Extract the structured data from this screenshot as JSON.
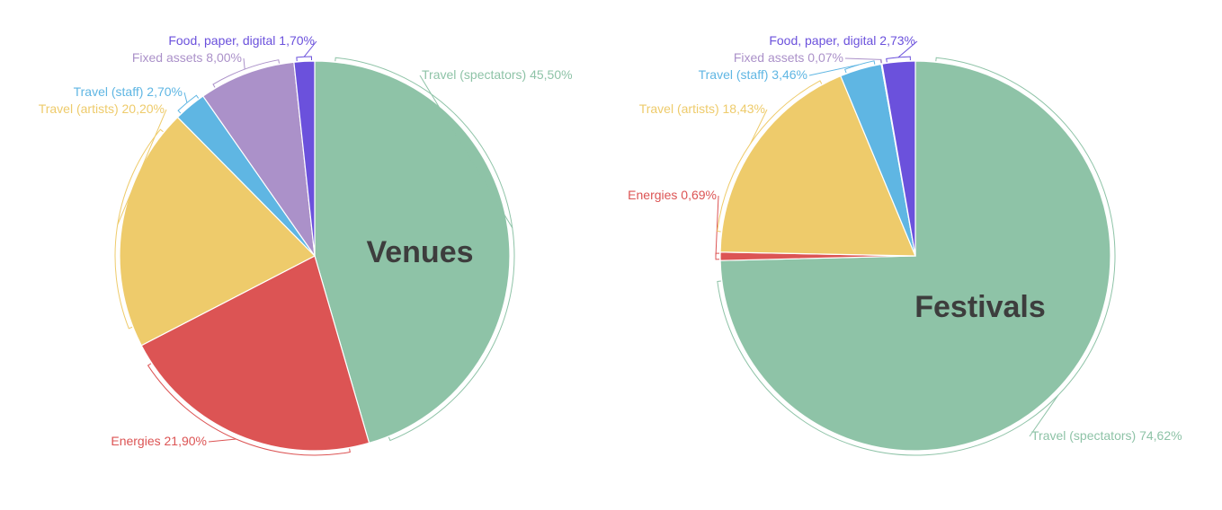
{
  "chart_data": [
    {
      "type": "pie",
      "title": "Venues",
      "slices": [
        {
          "label": "Travel (spectators)",
          "value": 45.5,
          "display": "45,50%",
          "color": "#8ec3a7"
        },
        {
          "label": "Energies",
          "value": 21.9,
          "display": "21,90%",
          "color": "#dc5454"
        },
        {
          "label": "Travel (artists)",
          "value": 20.2,
          "display": "20,20%",
          "color": "#eecb6b"
        },
        {
          "label": "Travel (staff)",
          "value": 2.7,
          "display": "2,70%",
          "color": "#5fb6e3"
        },
        {
          "label": "Fixed assets",
          "value": 8.0,
          "display": "8,00%",
          "color": "#ab91c9"
        },
        {
          "label": "Food, paper, digital",
          "value": 1.7,
          "display": "1,70%",
          "color": "#6b51dc"
        }
      ]
    },
    {
      "type": "pie",
      "title": "Festivals",
      "slices": [
        {
          "label": "Travel (spectators)",
          "value": 74.62,
          "display": "74,62%",
          "color": "#8ec3a7"
        },
        {
          "label": "Energies",
          "value": 0.69,
          "display": "0,69%",
          "color": "#dc5454"
        },
        {
          "label": "Travel (artists)",
          "value": 18.43,
          "display": "18,43%",
          "color": "#eecb6b"
        },
        {
          "label": "Travel (staff)",
          "value": 3.46,
          "display": "3,46%",
          "color": "#5fb6e3"
        },
        {
          "label": "Fixed assets",
          "value": 0.07,
          "display": "0,07%",
          "color": "#ab91c9"
        },
        {
          "label": "Food, paper, digital",
          "value": 2.73,
          "display": "2,73%",
          "color": "#6b51dc"
        }
      ]
    }
  ]
}
